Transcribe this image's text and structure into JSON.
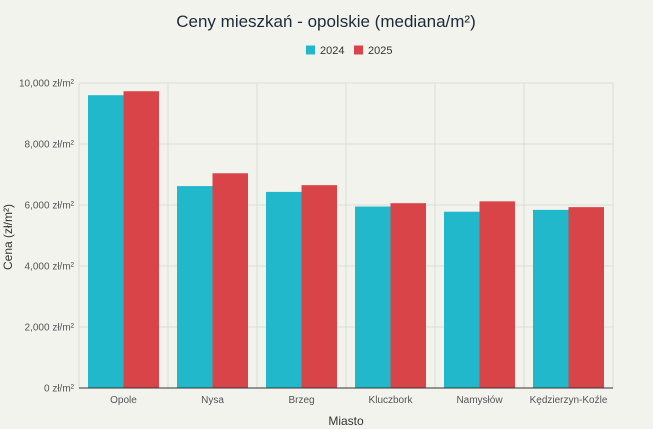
{
  "chart_data": {
    "type": "bar",
    "title": "Ceny mieszkań - opolskie (mediana/m²)",
    "xlabel": "Miasto",
    "ylabel": "Cena (zł/m²)",
    "categories": [
      "Opole",
      "Nysa",
      "Brzeg",
      "Kluczbork",
      "Namysłów",
      "Kędzierzyn-Koźle"
    ],
    "series": [
      {
        "name": "2024",
        "color": "#22b8cc",
        "values": [
          9600,
          6620,
          6430,
          5950,
          5780,
          5840
        ]
      },
      {
        "name": "2025",
        "color": "#d94448",
        "values": [
          9730,
          7040,
          6650,
          6060,
          6120,
          5930
        ]
      }
    ],
    "ylim": [
      0,
      10000
    ],
    "yticks": [
      0,
      2000,
      4000,
      6000,
      8000,
      10000
    ],
    "ytick_labels": [
      "0 zł/m²",
      "2,000 zł/m²",
      "4,000 zł/m²",
      "6,000 zł/m²",
      "8,000 zł/m²",
      "10,000 zł/m²"
    ],
    "grid": true,
    "legend_position": "top-center"
  }
}
